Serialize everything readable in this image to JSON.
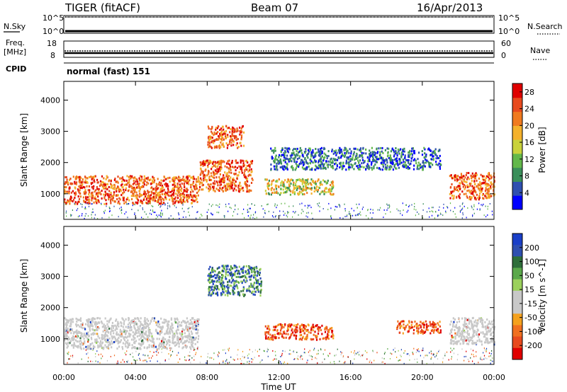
{
  "header": {
    "station": "TIGER (fitACF)",
    "beam": "Beam 07",
    "date": "16/Apr/2013"
  },
  "status_panels": {
    "nsky_label": "N.Sky",
    "nsearch_label": "N.Search",
    "nsky_ticks": [
      "10^5",
      "10^0"
    ],
    "freq_label": "Freq.",
    "freq_unit": "[MHz]",
    "freq_ticks": [
      "18",
      "8"
    ],
    "nave_label": "Nave",
    "nave_ticks": [
      "60",
      "0"
    ],
    "cpid_label": "CPID",
    "cpid_value": "normal (fast) 151"
  },
  "colors": {
    "power_scale": [
      "#0000ff",
      "#2f4fb0",
      "#3a8f5a",
      "#63b84a",
      "#c9d23b",
      "#f4b12c",
      "#f07a1f",
      "#e84a1e",
      "#e00000"
    ],
    "velocity_scale": [
      "#1a3fc8",
      "#2f4fb0",
      "#2e6e3a",
      "#5aa84a",
      "#9bd05c",
      "#c8c8c8",
      "#c8c8c8",
      "#f4a11e",
      "#f07020",
      "#e84a1e",
      "#e00000"
    ],
    "ground_scatter": "#c8c8c8"
  },
  "chart_data": [
    {
      "type": "heatmap",
      "name": "power",
      "x_ticks": [
        "00:00",
        "04:00",
        "08:00",
        "12:00",
        "16:00",
        "20:00",
        "00:00"
      ],
      "xlim_hours": [
        0,
        24
      ],
      "ylabel": "Slant Range [km]",
      "y_ticks": [
        1000,
        2000,
        3000,
        4000
      ],
      "ylim_km": [
        180,
        4600
      ],
      "colorbar_label": "Power [dB]",
      "colorbar_ticks": [
        4,
        8,
        12,
        16,
        20,
        24,
        28
      ],
      "colorbar_range": [
        0,
        30
      ],
      "regions": [
        {
          "t": [
            0,
            7.5
          ],
          "range_km": [
            700,
            1600
          ],
          "level": "high"
        },
        {
          "t": [
            7.5,
            10.5
          ],
          "range_km": [
            1100,
            2100
          ],
          "level": "high"
        },
        {
          "t": [
            8.0,
            10.0
          ],
          "range_km": [
            2500,
            3200
          ],
          "level": "high"
        },
        {
          "t": [
            11.2,
            15.0
          ],
          "range_km": [
            1000,
            1500
          ],
          "level": "mid"
        },
        {
          "t": [
            11.5,
            21.0
          ],
          "range_km": [
            1800,
            2500
          ],
          "level": "low"
        },
        {
          "t": [
            21.5,
            24
          ],
          "range_km": [
            850,
            1700
          ],
          "level": "high"
        }
      ]
    },
    {
      "type": "heatmap",
      "name": "velocity",
      "x_ticks": [
        "00:00",
        "04:00",
        "08:00",
        "12:00",
        "16:00",
        "20:00",
        "00:00"
      ],
      "xlim_hours": [
        0,
        24
      ],
      "xlabel": "Time UT",
      "ylabel": "Slant Range [km]",
      "y_ticks": [
        1000,
        2000,
        3000,
        4000
      ],
      "ylim_km": [
        180,
        4600
      ],
      "colorbar_label": "Velocity [m s^-1]",
      "colorbar_ticks": [
        200,
        100,
        50,
        15,
        -15,
        -50,
        -100,
        -200
      ],
      "colorbar_range": [
        -250,
        250
      ],
      "regions": [
        {
          "t": [
            0,
            7.5
          ],
          "range_km": [
            700,
            1700
          ],
          "level": "ground"
        },
        {
          "t": [
            8.0,
            11.0
          ],
          "range_km": [
            2400,
            3400
          ],
          "level": "positive"
        },
        {
          "t": [
            11.2,
            15.0
          ],
          "range_km": [
            1000,
            1500
          ],
          "level": "negative"
        },
        {
          "t": [
            18.5,
            21.0
          ],
          "range_km": [
            1200,
            1600
          ],
          "level": "negative"
        },
        {
          "t": [
            21.5,
            24
          ],
          "range_km": [
            850,
            1700
          ],
          "level": "ground"
        }
      ]
    }
  ]
}
